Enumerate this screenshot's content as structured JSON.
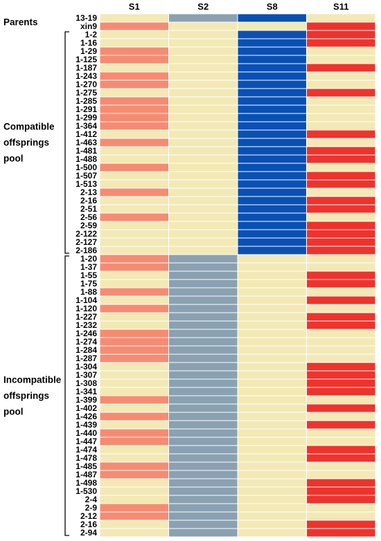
{
  "chart_data": {
    "type": "heatmap",
    "columns": [
      "S1",
      "S2",
      "S8",
      "S11"
    ],
    "colors": {
      "absent": "#f3e9b5",
      "S1": "#f68b72",
      "S2": "#8aa1b2",
      "S8": "#0a50b4",
      "S11": "#f0322c"
    },
    "groups": [
      {
        "label_lines": [
          "Parents"
        ],
        "rows": [
          "13-19",
          "xin9"
        ]
      },
      {
        "label_lines": [
          "Compatible",
          "offsprings",
          "pool"
        ],
        "rows": [
          "1-2",
          "1-16",
          "1-29",
          "1-125",
          "1-187",
          "1-243",
          "1-270",
          "1-275",
          "1-285",
          "1-291",
          "1-299",
          "1-364",
          "1-412",
          "1-463",
          "1-481",
          "1-488",
          "1-500",
          "1-507",
          "1-513",
          "2-13",
          "2-16",
          "2-51",
          "2-56",
          "2-59",
          "2-122",
          "2-127",
          "2-186"
        ]
      },
      {
        "label_lines": [
          "Incompatible",
          "offsprings",
          "pool"
        ],
        "rows": [
          "1-20",
          "1-37",
          "1-55",
          "1-75",
          "1-88",
          "1-104",
          "1-120",
          "1-227",
          "1-232",
          "1-246",
          "1-274",
          "1-284",
          "1-287",
          "1-304",
          "1-307",
          "1-308",
          "1-341",
          "1-399",
          "1-402",
          "1-426",
          "1-439",
          "1-440",
          "1-447",
          "1-474",
          "1-478",
          "1-485",
          "1-487",
          "1-498",
          "1-530",
          "2-4",
          "2-9",
          "2-12",
          "2-16",
          "2-94"
        ]
      }
    ],
    "rows": [
      "13-19",
      "xin9",
      "1-2",
      "1-16",
      "1-29",
      "1-125",
      "1-187",
      "1-243",
      "1-270",
      "1-275",
      "1-285",
      "1-291",
      "1-299",
      "1-364",
      "1-412",
      "1-463",
      "1-481",
      "1-488",
      "1-500",
      "1-507",
      "1-513",
      "2-13",
      "2-16",
      "2-51",
      "2-56",
      "2-59",
      "2-122",
      "2-127",
      "2-186",
      "1-20",
      "1-37",
      "1-55",
      "1-75",
      "1-88",
      "1-104",
      "1-120",
      "1-227",
      "1-232",
      "1-246",
      "1-274",
      "1-284",
      "1-287",
      "1-304",
      "1-307",
      "1-308",
      "1-341",
      "1-399",
      "1-402",
      "1-426",
      "1-439",
      "1-440",
      "1-447",
      "1-474",
      "1-478",
      "1-485",
      "1-487",
      "1-498",
      "1-530",
      "2-4",
      "2-9",
      "2-12",
      "2-16",
      "2-94"
    ],
    "values": [
      [
        0,
        1,
        1,
        0
      ],
      [
        1,
        0,
        0,
        1
      ],
      [
        0,
        0,
        1,
        1
      ],
      [
        0,
        0,
        1,
        1
      ],
      [
        1,
        0,
        1,
        0
      ],
      [
        1,
        0,
        1,
        0
      ],
      [
        0,
        0,
        1,
        1
      ],
      [
        1,
        0,
        1,
        0
      ],
      [
        1,
        0,
        1,
        0
      ],
      [
        0,
        0,
        1,
        1
      ],
      [
        1,
        0,
        1,
        0
      ],
      [
        1,
        0,
        1,
        0
      ],
      [
        1,
        0,
        1,
        0
      ],
      [
        1,
        0,
        1,
        0
      ],
      [
        0,
        0,
        1,
        1
      ],
      [
        1,
        0,
        1,
        0
      ],
      [
        0,
        0,
        1,
        1
      ],
      [
        0,
        0,
        1,
        1
      ],
      [
        1,
        0,
        1,
        0
      ],
      [
        0,
        0,
        1,
        1
      ],
      [
        0,
        0,
        1,
        1
      ],
      [
        1,
        0,
        1,
        0
      ],
      [
        0,
        0,
        1,
        1
      ],
      [
        0,
        0,
        1,
        1
      ],
      [
        1,
        0,
        1,
        0
      ],
      [
        0,
        0,
        1,
        1
      ],
      [
        0,
        0,
        1,
        1
      ],
      [
        0,
        0,
        1,
        1
      ],
      [
        0,
        0,
        1,
        1
      ],
      [
        1,
        1,
        0,
        0
      ],
      [
        1,
        1,
        0,
        0
      ],
      [
        0,
        1,
        0,
        1
      ],
      [
        0,
        1,
        0,
        1
      ],
      [
        1,
        1,
        0,
        0
      ],
      [
        0,
        1,
        0,
        1
      ],
      [
        1,
        1,
        0,
        0
      ],
      [
        0,
        1,
        0,
        1
      ],
      [
        0,
        1,
        0,
        1
      ],
      [
        1,
        1,
        0,
        0
      ],
      [
        1,
        1,
        0,
        0
      ],
      [
        1,
        1,
        0,
        0
      ],
      [
        1,
        1,
        0,
        0
      ],
      [
        0,
        1,
        0,
        1
      ],
      [
        0,
        1,
        0,
        1
      ],
      [
        0,
        1,
        0,
        1
      ],
      [
        0,
        1,
        0,
        1
      ],
      [
        1,
        1,
        0,
        0
      ],
      [
        0,
        1,
        0,
        1
      ],
      [
        1,
        1,
        0,
        0
      ],
      [
        0,
        1,
        0,
        1
      ],
      [
        1,
        1,
        0,
        0
      ],
      [
        1,
        1,
        0,
        0
      ],
      [
        0,
        1,
        0,
        1
      ],
      [
        0,
        1,
        0,
        1
      ],
      [
        1,
        1,
        0,
        0
      ],
      [
        1,
        1,
        0,
        0
      ],
      [
        0,
        1,
        0,
        1
      ],
      [
        0,
        1,
        0,
        1
      ],
      [
        0,
        1,
        0,
        1
      ],
      [
        1,
        1,
        0,
        0
      ],
      [
        1,
        1,
        0,
        0
      ],
      [
        0,
        1,
        0,
        1
      ],
      [
        0,
        1,
        0,
        1
      ]
    ]
  }
}
